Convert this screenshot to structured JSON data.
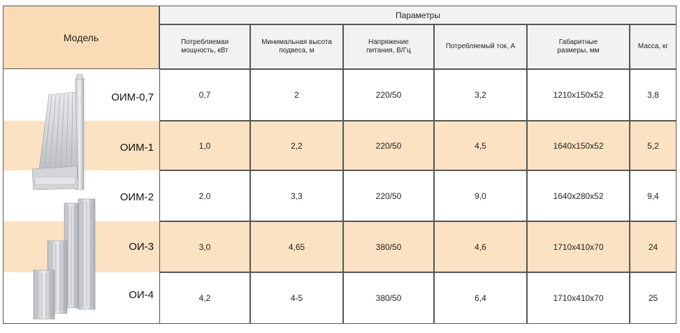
{
  "table": {
    "model_header": "Модель",
    "params_header": "Параметры",
    "columns": [
      "Потребляемая мощность, кВт",
      "Минимальная высота подвеса, м",
      "Напряжение питания, В/Гц",
      "Потребляемый ток, А",
      "Габаритные размеры, мм",
      "Масса, кг"
    ],
    "rows": [
      {
        "model": "ОИМ-0,7",
        "values": [
          "0,7",
          "2",
          "220/50",
          "3,2",
          "1210x150x52",
          "3,8"
        ],
        "highlight": false
      },
      {
        "model": "ОИМ-1",
        "values": [
          "1,0",
          "2,2",
          "220/50",
          "4,5",
          "1640x150x52",
          "5,2"
        ],
        "highlight": true
      },
      {
        "model": "ОИМ-2",
        "values": [
          "2,0",
          "3,3",
          "220/50",
          "9,0",
          "1640x280x52",
          "9,4"
        ],
        "highlight": false
      },
      {
        "model": "ОИ-3",
        "values": [
          "3,0",
          "4,65",
          "380/50",
          "4,6",
          "1710x410x70",
          "24"
        ],
        "highlight": true
      },
      {
        "model": "ОИ-4",
        "values": [
          "4,2",
          "4-5",
          "380/50",
          "6,4",
          "1710x410x70",
          "25"
        ],
        "highlight": false
      }
    ]
  },
  "colors": {
    "header_peach": "#f9dcb6",
    "row_peach": "#fbe2c2",
    "border": "#555555",
    "header_gray": "#f2f2f2"
  },
  "images": [
    "heater-oim-products",
    "heater-oi-products"
  ]
}
